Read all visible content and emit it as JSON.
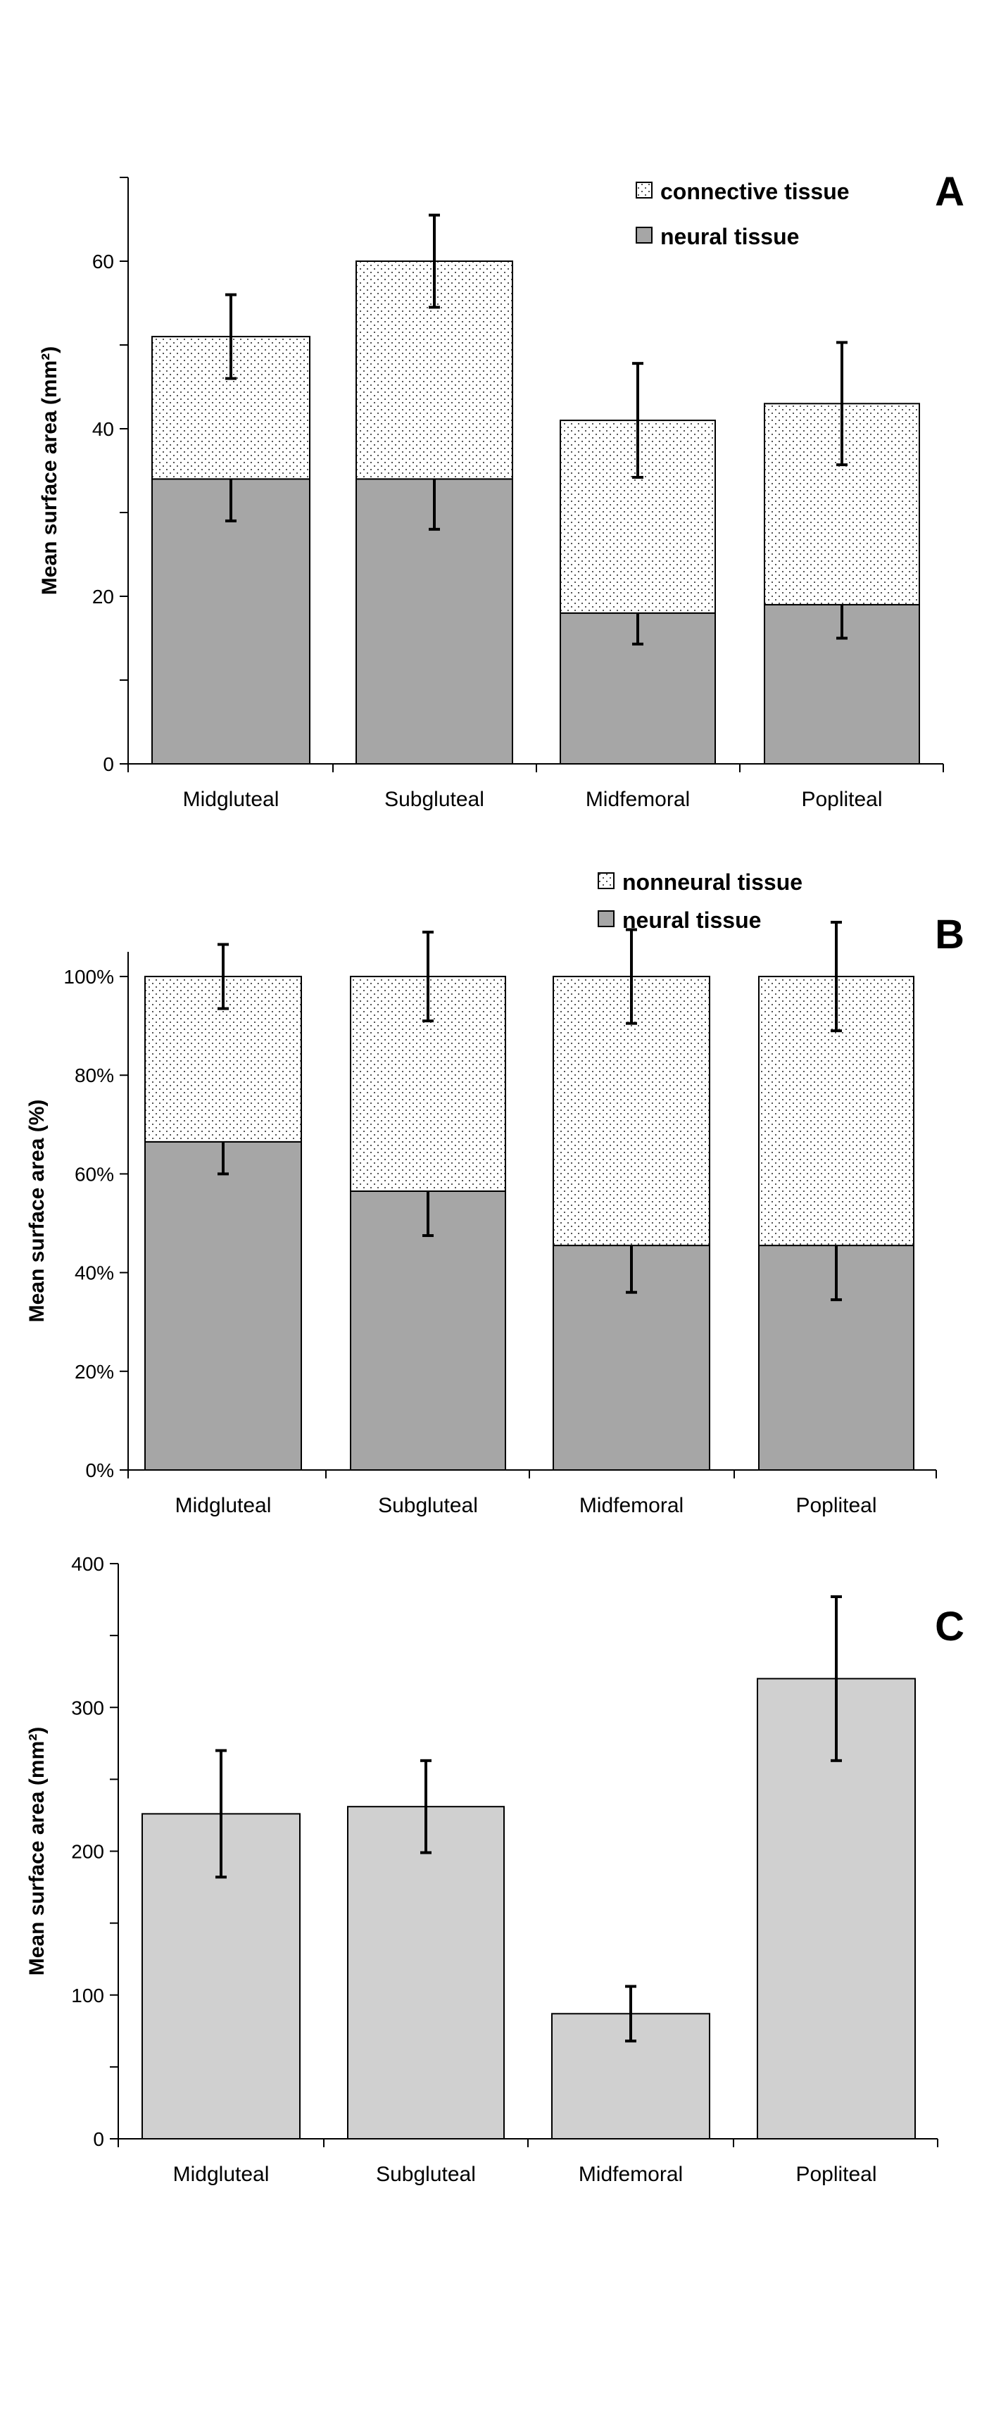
{
  "chart_data": [
    {
      "panel": "A",
      "type": "bar",
      "stacked": true,
      "categories": [
        "Midgluteal",
        "Subgluteal",
        "Midfemoral",
        "Popliteal"
      ],
      "ylabel": "Mean surface area (mm²)",
      "ylim": [
        0,
        70
      ],
      "yticks": [
        0,
        20,
        40,
        60
      ],
      "ytick_labels": [
        "0",
        "20",
        "40",
        "60"
      ],
      "series": [
        {
          "name": "neural tissue",
          "values": [
            34,
            34,
            18,
            19
          ],
          "errors": [
            5,
            6,
            3.7,
            4
          ],
          "color": "#a6a6a6",
          "pattern": "solid"
        },
        {
          "name": "connective tissue",
          "values": [
            17,
            26,
            23,
            24
          ],
          "errors": [
            5,
            5.5,
            6.8,
            7.3
          ],
          "color": "#ffffff",
          "pattern": "dots"
        }
      ],
      "legend_position": "top-right",
      "grid": false
    },
    {
      "panel": "B",
      "type": "bar",
      "stacked": true,
      "categories": [
        "Midgluteal",
        "Subgluteal",
        "Midfemoral",
        "Popliteal"
      ],
      "ylabel": "Mean surface area (%)",
      "ylim": [
        0,
        105
      ],
      "yticks": [
        0,
        20,
        40,
        60,
        80,
        100
      ],
      "ytick_labels": [
        "0%",
        "20%",
        "40%",
        "60%",
        "80%",
        "100%"
      ],
      "series": [
        {
          "name": "neural tissue",
          "values": [
            66.5,
            56.5,
            45.5,
            45.5
          ],
          "errors": [
            6.5,
            9,
            9.5,
            11
          ],
          "color": "#a6a6a6",
          "pattern": "solid"
        },
        {
          "name": "nonneural tissue",
          "values": [
            33.5,
            43.5,
            54.5,
            54.5
          ],
          "errors": [
            6.5,
            9,
            9.5,
            11
          ],
          "color": "#ffffff",
          "pattern": "dots"
        }
      ],
      "legend_position": "top-center",
      "grid": false
    },
    {
      "panel": "C",
      "type": "bar",
      "stacked": false,
      "categories": [
        "Midgluteal",
        "Subgluteal",
        "Midfemoral",
        "Popliteal"
      ],
      "ylabel": "Mean surface area (mm²)",
      "ylim": [
        0,
        400
      ],
      "yticks": [
        0,
        100,
        200,
        300,
        400
      ],
      "ytick_labels": [
        "0",
        "100",
        "200",
        "300",
        "400"
      ],
      "series": [
        {
          "name": "",
          "values": [
            226,
            231,
            87,
            320
          ],
          "errors": [
            44,
            32,
            19,
            57
          ],
          "color": "#d0d0d0",
          "pattern": "solid"
        }
      ],
      "grid": false
    }
  ]
}
